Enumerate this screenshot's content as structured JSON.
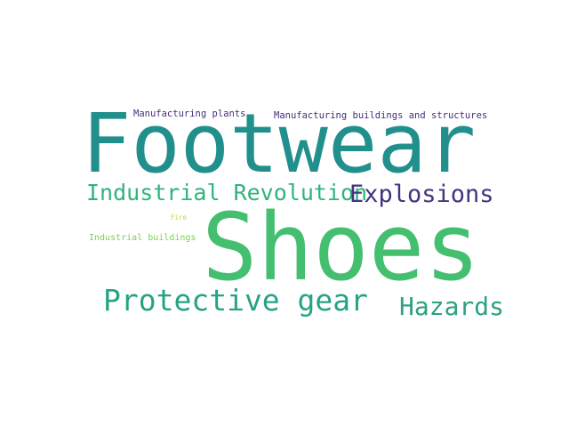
{
  "words": [
    {
      "id": "footwear",
      "text": "Footwear",
      "color": "#21908c"
    },
    {
      "id": "shoes",
      "text": "Shoes",
      "color": "#44bf70"
    },
    {
      "id": "industrial-revolution",
      "text": "Industrial Revolution",
      "color": "#2fb47c"
    },
    {
      "id": "explosions",
      "text": "Explosions",
      "color": "#46337e"
    },
    {
      "id": "protective-gear",
      "text": "Protective gear",
      "color": "#26a386"
    },
    {
      "id": "hazards",
      "text": "Hazards",
      "color": "#2ca084"
    },
    {
      "id": "manufacturing-plants",
      "text": "Manufacturing plants",
      "color": "#472d7b"
    },
    {
      "id": "manufacturing-buildings",
      "text": "Manufacturing buildings and structures",
      "color": "#472d7b"
    },
    {
      "id": "industrial-buildings",
      "text": "Industrial buildings",
      "color": "#7ad151"
    },
    {
      "id": "fire",
      "text": "Fire",
      "color": "#bddf26"
    }
  ]
}
